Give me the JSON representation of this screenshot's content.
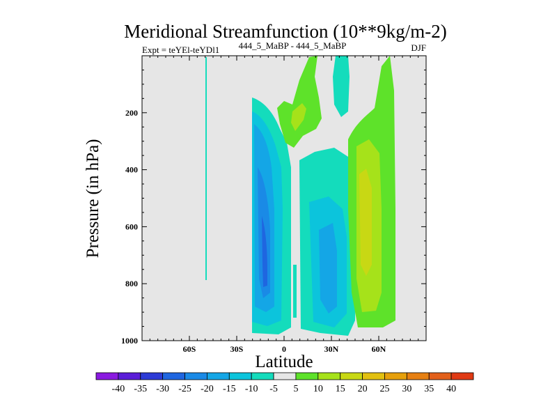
{
  "chart_data": {
    "type": "contour",
    "title": "Meridional Streamfunction (10**9kg/m-2)",
    "subtitle_left": "Expt = teYEl-teYDl1",
    "subtitle_center": "444_5_MaBP - 444_5_MaBP",
    "subtitle_right": "DJF",
    "xlabel": "Latitude",
    "ylabel": "Pressure (in hPa)",
    "xlim": [
      -90,
      90
    ],
    "ylim": [
      1000,
      0
    ],
    "x_ticks": [
      {
        "value": -60,
        "label": "60S"
      },
      {
        "value": -30,
        "label": "30S"
      },
      {
        "value": 0,
        "label": "0"
      },
      {
        "value": 30,
        "label": "30N"
      },
      {
        "value": 60,
        "label": "60N"
      }
    ],
    "y_ticks": [
      {
        "value": 200,
        "label": "200"
      },
      {
        "value": 400,
        "label": "400"
      },
      {
        "value": 600,
        "label": "600"
      },
      {
        "value": 800,
        "label": "800"
      },
      {
        "value": 1000,
        "label": "1000"
      }
    ],
    "colorbar": {
      "levels": [
        "-40",
        "-35",
        "-30",
        "-25",
        "-20",
        "-15",
        "-10",
        "-5",
        "5",
        "10",
        "15",
        "20",
        "25",
        "30",
        "35",
        "40"
      ],
      "colors": [
        "#8a1ae0",
        "#5b1ed8",
        "#2d3bd6",
        "#1f66e0",
        "#1a8ae6",
        "#14a6e6",
        "#0cc4dc",
        "#14dcbc",
        "#e6e6e6",
        "#5ee22a",
        "#a6e21a",
        "#c8d814",
        "#e2c010",
        "#e6a00c",
        "#e68012",
        "#e2601a",
        "#e03a14"
      ]
    },
    "background_color": "#e6e6e6",
    "features": [
      {
        "name": "southern-cell",
        "center_lat": -12,
        "center_p": 700,
        "min_value": -30,
        "lat_range": [
          -20,
          -2
        ],
        "p_range": [
          150,
          980
        ],
        "levels": [
          -10,
          -15,
          -20,
          -25,
          -30
        ]
      },
      {
        "name": "northern-negative-cell",
        "center_lat": 22,
        "center_p": 700,
        "min_value": -15,
        "lat_range": [
          5,
          40
        ],
        "p_range": [
          310,
          980
        ],
        "levels": [
          -5,
          -10,
          -15
        ]
      },
      {
        "name": "northern-positive-cell",
        "center_lat": 50,
        "center_p": 550,
        "max_value": 15,
        "lat_range": [
          42,
          68
        ],
        "p_range": [
          0,
          970
        ],
        "levels": [
          5,
          10,
          15
        ]
      },
      {
        "name": "upper-positive-lobe",
        "center_lat": 8,
        "center_p": 200,
        "max_value": 10,
        "lat_range": [
          -3,
          20
        ],
        "p_range": [
          0,
          330
        ],
        "levels": [
          5,
          10
        ]
      },
      {
        "name": "upper-negative-lobe",
        "center_lat": 33,
        "center_p": 100,
        "min_value": -5,
        "lat_range": [
          30,
          38
        ],
        "p_range": [
          0,
          200
        ],
        "levels": [
          -5
        ]
      },
      {
        "name": "polar-thin-band",
        "center_lat": -49,
        "min_value": -5,
        "lat_range": [
          -50,
          -49
        ],
        "p_range": [
          0,
          790
        ],
        "levels": [
          -5
        ]
      }
    ]
  }
}
